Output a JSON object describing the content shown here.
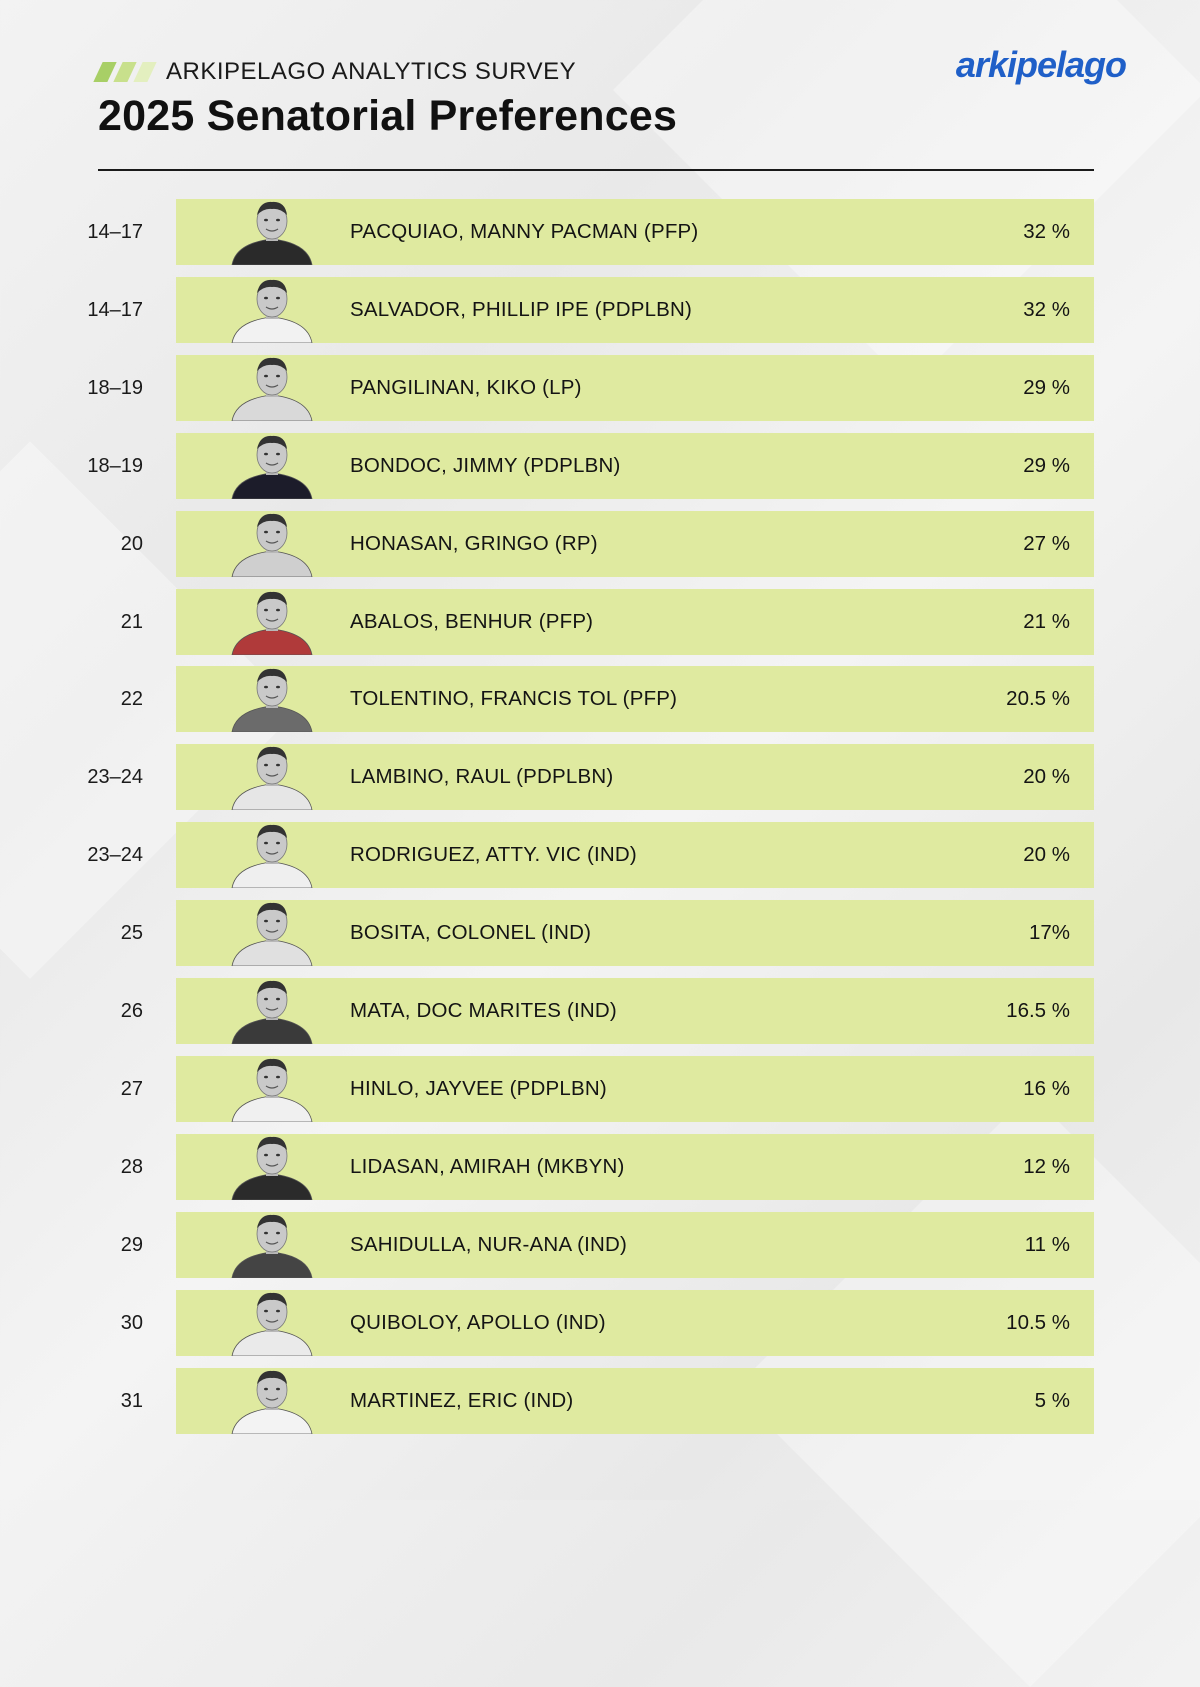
{
  "header": {
    "eyebrow": "ARKIPELAGO ANALYTICS SURVEY",
    "title": "2025 Senatorial Preferences",
    "logo": "arkipelago"
  },
  "colors": {
    "bar": "#dfeaa0",
    "stripe1": "#a8cf66",
    "stripe2": "#c8e08c",
    "stripe3": "#e3efbf",
    "logo": "#1f5fc8"
  },
  "chart_data": {
    "type": "table",
    "title": "2025 Senatorial Preferences",
    "rows": [
      {
        "rank": "14–17",
        "name": "PACQUIAO, MANNY PACMAN (PFP)",
        "value_label": "32 %",
        "value": 32
      },
      {
        "rank": "14–17",
        "name": "SALVADOR, PHILLIP IPE (PDPLBN)",
        "value_label": "32 %",
        "value": 32
      },
      {
        "rank": "18–19",
        "name": "PANGILINAN, KIKO (LP)",
        "value_label": "29 %",
        "value": 29
      },
      {
        "rank": "18–19",
        "name": "BONDOC, JIMMY (PDPLBN)",
        "value_label": "29 %",
        "value": 29
      },
      {
        "rank": "20",
        "name": "HONASAN, GRINGO (RP)",
        "value_label": "27 %",
        "value": 27
      },
      {
        "rank": "21",
        "name": "ABALOS, BENHUR (PFP)",
        "value_label": "21 %",
        "value": 21
      },
      {
        "rank": "22",
        "name": "TOLENTINO, FRANCIS TOL (PFP)",
        "value_label": "20.5 %",
        "value": 20.5
      },
      {
        "rank": "23–24",
        "name": "LAMBINO, RAUL (PDPLBN)",
        "value_label": "20 %",
        "value": 20
      },
      {
        "rank": "23–24",
        "name": "RODRIGUEZ, ATTY. VIC (IND)",
        "value_label": "20 %",
        "value": 20
      },
      {
        "rank": "25",
        "name": "BOSITA, COLONEL (IND)",
        "value_label": "17%",
        "value": 17
      },
      {
        "rank": "26",
        "name": "MATA, DOC MARITES (IND)",
        "value_label": "16.5 %",
        "value": 16.5
      },
      {
        "rank": "27",
        "name": "HINLO, JAYVEE (PDPLBN)",
        "value_label": "16 %",
        "value": 16
      },
      {
        "rank": "28",
        "name": "LIDASAN, AMIRAH (MKBYN)",
        "value_label": "12 %",
        "value": 12
      },
      {
        "rank": "29",
        "name": "SAHIDULLA, NUR-ANA (IND)",
        "value_label": "11 %",
        "value": 11
      },
      {
        "rank": "30",
        "name": "QUIBOLOY, APOLLO (IND)",
        "value_label": "10.5 %",
        "value": 10.5
      },
      {
        "rank": "31",
        "name": "MARTINEZ, ERIC (IND)",
        "value_label": "5 %",
        "value": 5
      }
    ]
  }
}
